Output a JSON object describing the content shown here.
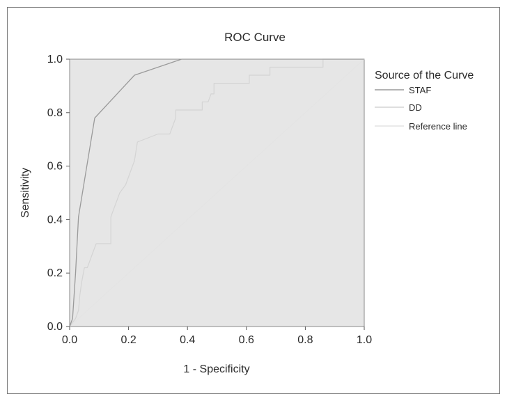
{
  "chart_data": {
    "type": "line",
    "title": "ROC Curve",
    "xlabel": "1 - Specificity",
    "ylabel": "Sensitivity",
    "xlim": [
      0,
      1
    ],
    "ylim": [
      0,
      1
    ],
    "xticks": [
      0.0,
      0.2,
      0.4,
      0.6,
      0.8,
      1.0
    ],
    "yticks": [
      0.0,
      0.2,
      0.4,
      0.6,
      0.8,
      1.0
    ],
    "tick_labels": [
      "0.0",
      "0.2",
      "0.4",
      "0.6",
      "0.8",
      "1.0"
    ],
    "grid": false,
    "legend": {
      "title": "Source of the Curve",
      "position": "right"
    },
    "series": [
      {
        "name": "STAF",
        "color": "#9a9a9a",
        "x": [
          0.0,
          0.01,
          0.02,
          0.03,
          0.085,
          0.22,
          0.38,
          1.0
        ],
        "y": [
          0.0,
          0.03,
          0.2,
          0.41,
          0.78,
          0.94,
          1.0,
          1.0
        ]
      },
      {
        "name": "DD",
        "color": "#d4d4d4",
        "x": [
          0.0,
          0.02,
          0.03,
          0.035,
          0.04,
          0.045,
          0.05,
          0.06,
          0.07,
          0.08,
          0.09,
          0.1,
          0.14,
          0.14,
          0.15,
          0.16,
          0.17,
          0.19,
          0.2,
          0.21,
          0.22,
          0.23,
          0.23,
          0.3,
          0.34,
          0.35,
          0.36,
          0.36,
          0.45,
          0.45,
          0.47,
          0.48,
          0.49,
          0.49,
          0.61,
          0.61,
          0.68,
          0.68,
          0.86,
          0.86,
          1.0
        ],
        "y": [
          0.0,
          0.03,
          0.06,
          0.12,
          0.16,
          0.19,
          0.22,
          0.22,
          0.25,
          0.28,
          0.31,
          0.31,
          0.31,
          0.41,
          0.44,
          0.47,
          0.5,
          0.53,
          0.56,
          0.59,
          0.62,
          0.69,
          0.69,
          0.72,
          0.72,
          0.75,
          0.78,
          0.81,
          0.81,
          0.84,
          0.84,
          0.87,
          0.87,
          0.91,
          0.91,
          0.94,
          0.94,
          0.97,
          0.97,
          1.0,
          1.0
        ]
      },
      {
        "name": "Reference line",
        "color": "#e4e4e4",
        "x": [
          0,
          1
        ],
        "y": [
          0,
          1
        ]
      }
    ]
  }
}
